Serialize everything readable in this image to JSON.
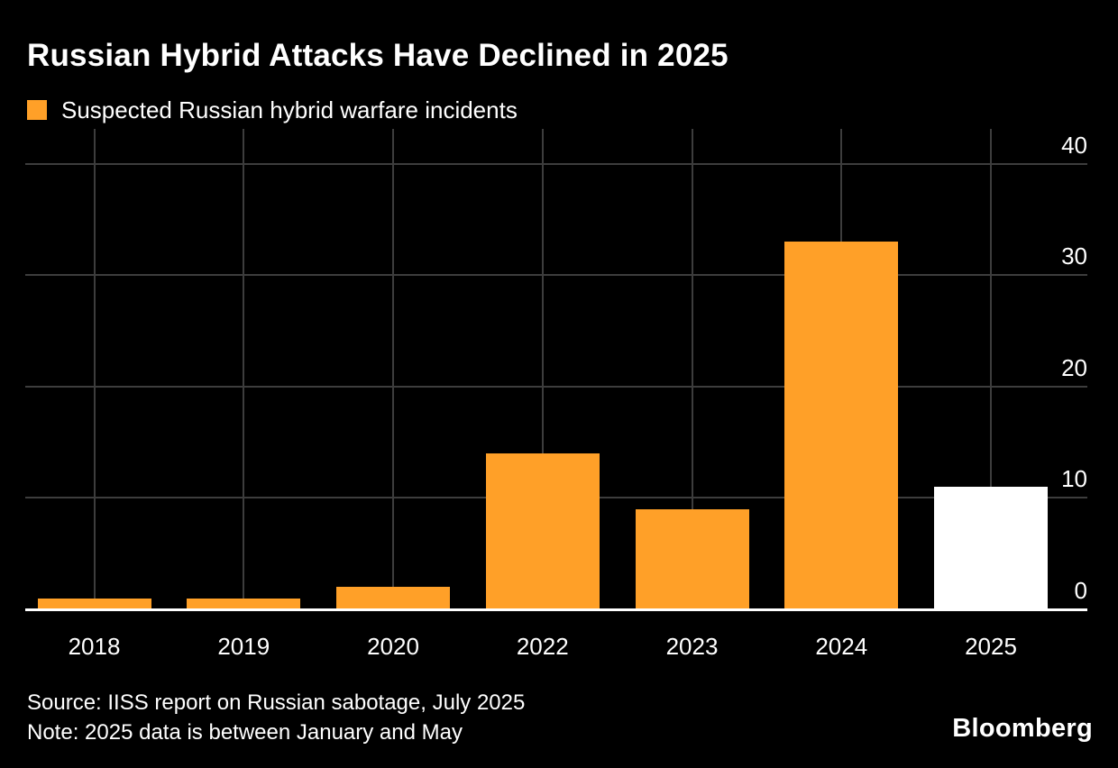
{
  "header": {
    "title": "Russian Hybrid Attacks Have Declined in 2025"
  },
  "legend": {
    "label": "Suspected Russian hybrid warfare incidents",
    "swatch_color": "#FFA028"
  },
  "chart_data": {
    "type": "bar",
    "title": "Russian Hybrid Attacks Have Declined in 2025",
    "series_label": "Suspected Russian hybrid warfare incidents",
    "categories": [
      "2018",
      "2019",
      "2020",
      "2022",
      "2023",
      "2024",
      "2025"
    ],
    "values": [
      1,
      1,
      2,
      14,
      9,
      33,
      11
    ],
    "bar_colors": [
      "#FFA028",
      "#FFA028",
      "#FFA028",
      "#FFA028",
      "#FFA028",
      "#FFA028",
      "#FFFFFF"
    ],
    "xlabel": "",
    "ylabel": "",
    "ylim": [
      0,
      40
    ],
    "yticks": [
      0,
      10,
      20,
      30,
      40
    ],
    "ytick_side": "right",
    "grid": true,
    "legend_position": "top-left",
    "highlight_note": "2025 bar drawn in white; all other bars orange"
  },
  "footer": {
    "source": "Source: IISS report on Russian sabotage, July 2025",
    "note": "Note: 2025 data is between January and May",
    "brand": "Bloomberg"
  },
  "colors": {
    "background": "#000000",
    "bar_orange": "#FFA028",
    "bar_white": "#FFFFFF",
    "gridline": "#3D3D3D",
    "axis_line": "#FFFFFF",
    "text": "#FFFFFF"
  }
}
